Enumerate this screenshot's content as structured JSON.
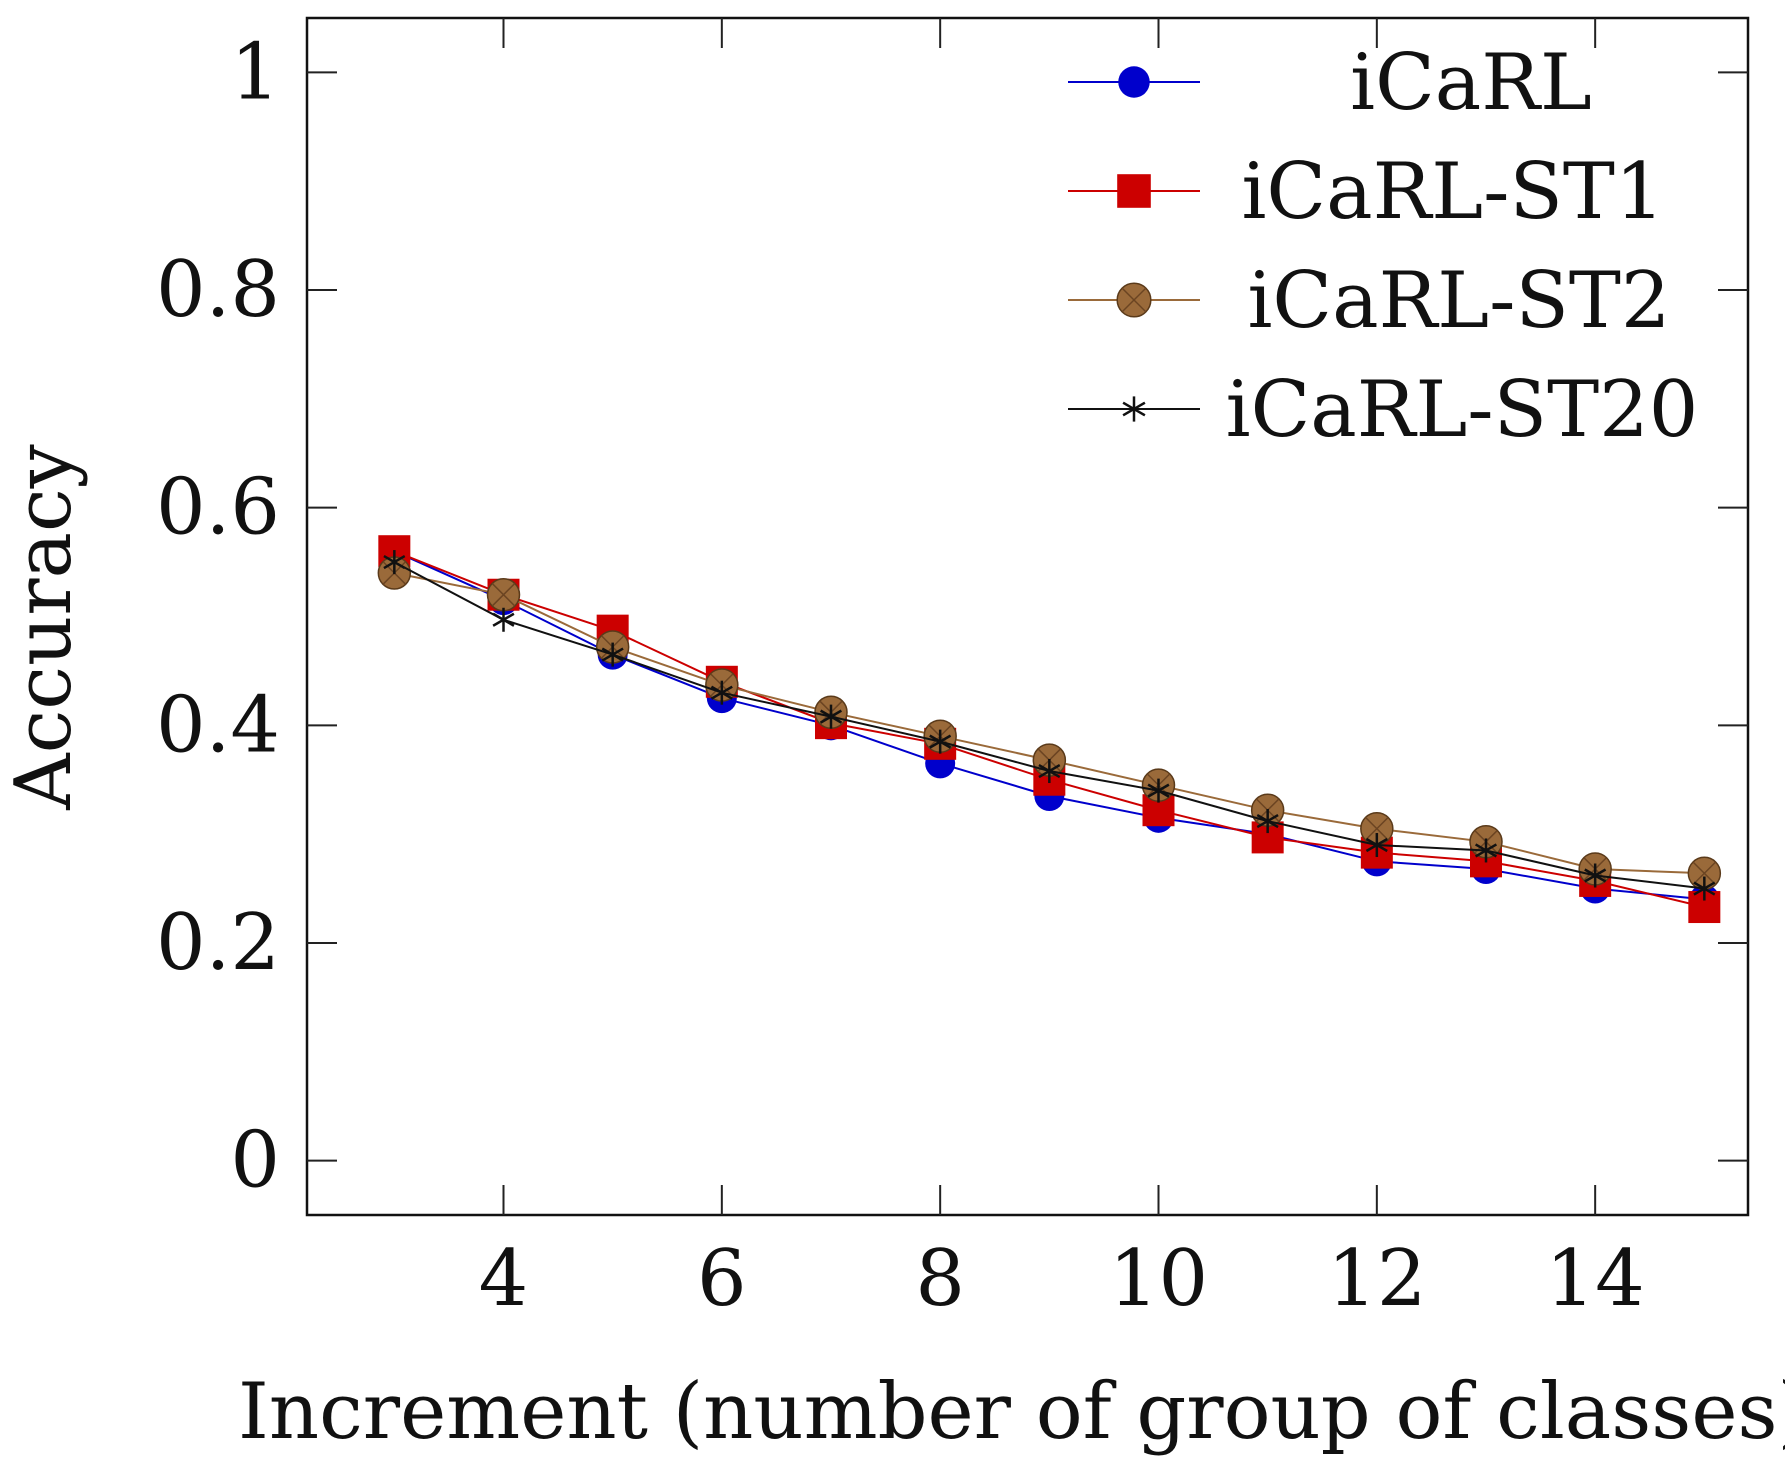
{
  "chart_data": {
    "type": "line",
    "title": "",
    "xlabel": "Increment (number of group of classes)",
    "ylabel": "Accuracy",
    "xlim": [
      2.2,
      15.4
    ],
    "ylim": [
      -0.05,
      1.05
    ],
    "xticks": [
      4,
      6,
      8,
      10,
      12,
      14
    ],
    "xtick_labels": [
      "4",
      "6",
      "8",
      "10",
      "12",
      "14"
    ],
    "yticks": [
      0,
      0.2,
      0.4,
      0.6,
      0.8,
      1
    ],
    "ytick_labels": [
      "0",
      "0.2",
      "0.4",
      "0.6",
      "0.8",
      "1"
    ],
    "grid": false,
    "legend_position": "top-right",
    "x": [
      3,
      4,
      5,
      6,
      7,
      8,
      9,
      10,
      11,
      12,
      13,
      14,
      15
    ],
    "series": [
      {
        "name": "iCaRL",
        "color": "#0000cc",
        "marker": "circle",
        "values": [
          0.56,
          0.515,
          0.465,
          0.425,
          0.4,
          0.365,
          0.335,
          0.315,
          0.3,
          0.275,
          0.268,
          0.25,
          0.24
        ]
      },
      {
        "name": "iCaRL-ST1",
        "color": "#cc0000",
        "marker": "square",
        "values": [
          0.56,
          0.52,
          0.487,
          0.44,
          0.402,
          0.383,
          0.35,
          0.322,
          0.297,
          0.283,
          0.275,
          0.257,
          0.233
        ]
      },
      {
        "name": "iCaRL-ST2",
        "color": "#9a6a3a",
        "marker": "circle-cross",
        "values": [
          0.54,
          0.52,
          0.472,
          0.437,
          0.412,
          0.39,
          0.368,
          0.345,
          0.322,
          0.305,
          0.293,
          0.268,
          0.264
        ]
      },
      {
        "name": "iCaRL-ST20",
        "color": "#111111",
        "marker": "star",
        "values": [
          0.55,
          0.497,
          0.465,
          0.43,
          0.408,
          0.385,
          0.358,
          0.34,
          0.312,
          0.29,
          0.285,
          0.262,
          0.25
        ]
      }
    ]
  }
}
